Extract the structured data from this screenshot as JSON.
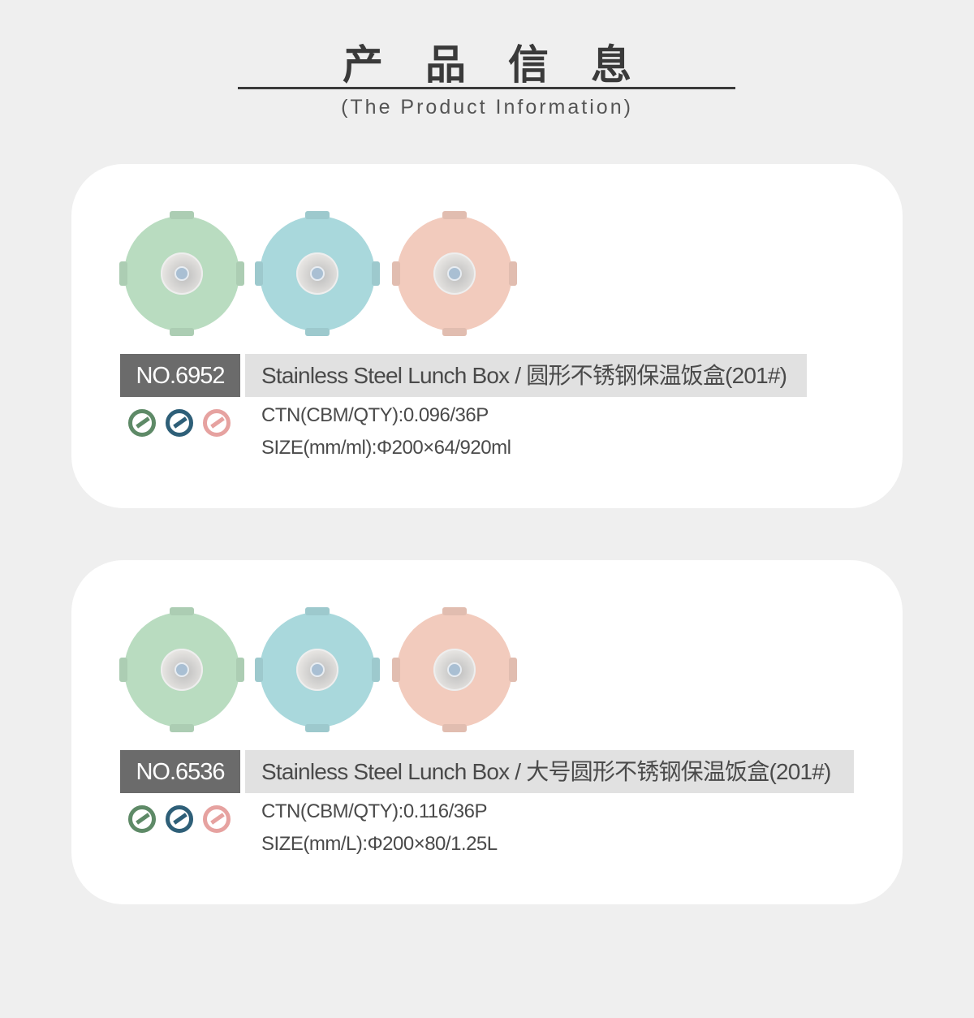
{
  "header": {
    "title": "产品信息",
    "subtitle": "(The Product  Information)"
  },
  "colors": {
    "green": "#b9dcc0",
    "blue": "#a9d8dc",
    "pink": "#f2cbbd",
    "icon_green": "#5e8a67",
    "icon_blue": "#2e5f78",
    "icon_pink": "#e6a2a0"
  },
  "products": [
    {
      "no": "NO.6952",
      "name": "Stainless Steel Lunch Box / 圆形不锈钢保温饭盒(201#)",
      "ctn": "CTN(CBM/QTY):0.096/36P",
      "size": "SIZE(mm/ml):Φ200×64/920ml"
    },
    {
      "no": "NO.6536",
      "name": "Stainless Steel Lunch Box / 大号圆形不锈钢保温饭盒(201#)",
      "ctn": "CTN(CBM/QTY):0.116/36P",
      "size": "SIZE(mm/L):Φ200×80/1.25L"
    }
  ]
}
